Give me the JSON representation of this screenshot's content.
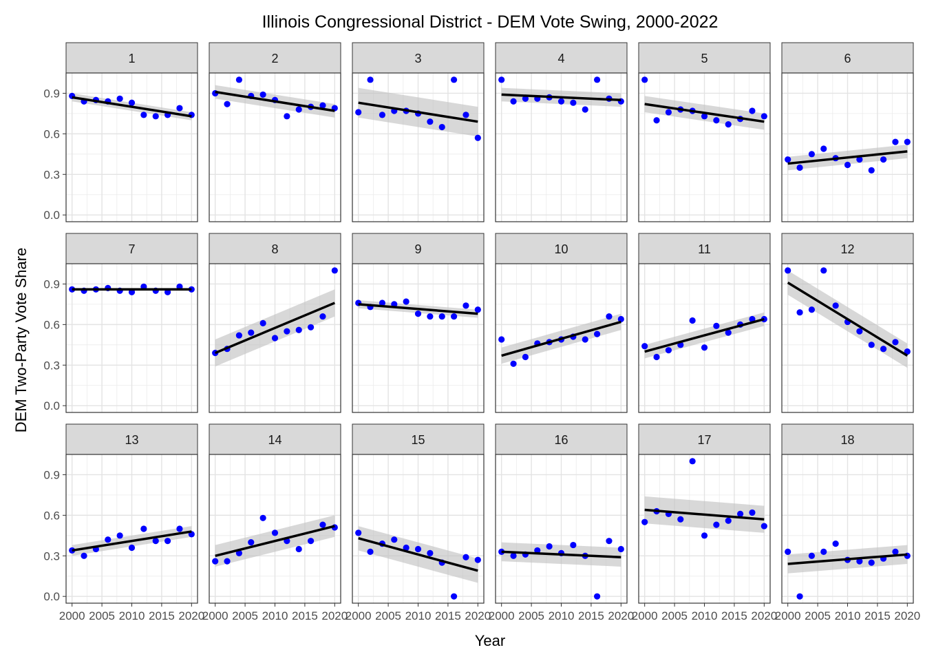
{
  "chart_data": {
    "type": "scatter",
    "title": "Illinois Congressional District - DEM Vote Swing, 2000-2022",
    "xlabel": "Year",
    "ylabel": "DEM Two-Party Vote Share",
    "x_ticks": [
      2000,
      2005,
      2010,
      2015,
      2020
    ],
    "x_tick_labels": [
      "2000",
      "2005",
      "2010",
      "2015",
      "2020"
    ],
    "y_ticks": [
      0.0,
      0.3,
      0.6,
      0.9
    ],
    "y_tick_labels": [
      "0.0",
      "0.3",
      "0.6",
      "0.9"
    ],
    "xlim": [
      1999.0,
      2021.0
    ],
    "ylim": [
      -0.05,
      1.05
    ],
    "grid": true,
    "point_color": "#0000ff",
    "trend_color": "#000000",
    "band_color": "#bebebe",
    "strip_color": "#d9d9d9",
    "x": [
      2000,
      2002,
      2004,
      2006,
      2008,
      2010,
      2012,
      2014,
      2016,
      2018,
      2020
    ],
    "panels": [
      {
        "label": "1",
        "values": [
          0.88,
          0.84,
          0.85,
          0.84,
          0.86,
          0.83,
          0.74,
          0.73,
          0.74,
          0.79,
          0.74
        ],
        "trend": [
          0.87,
          0.73
        ],
        "band": [
          0.03,
          0.03
        ]
      },
      {
        "label": "2",
        "values": [
          0.9,
          0.82,
          1.0,
          0.88,
          0.89,
          0.85,
          0.73,
          0.78,
          0.8,
          0.81,
          0.79
        ],
        "trend": [
          0.91,
          0.77
        ],
        "band": [
          0.05,
          0.05
        ]
      },
      {
        "label": "3",
        "values": [
          0.76,
          1.0,
          0.74,
          0.77,
          0.77,
          0.75,
          0.69,
          0.65,
          1.0,
          0.74,
          0.57
        ],
        "trend": [
          0.83,
          0.69
        ],
        "band": [
          0.11,
          0.11
        ]
      },
      {
        "label": "4",
        "values": [
          1.0,
          0.84,
          0.86,
          0.86,
          0.87,
          0.84,
          0.83,
          0.78,
          1.0,
          0.86,
          0.84
        ],
        "trend": [
          0.89,
          0.85
        ],
        "band": [
          0.05,
          0.05
        ]
      },
      {
        "label": "5",
        "values": [
          1.0,
          0.7,
          0.76,
          0.78,
          0.77,
          0.73,
          0.7,
          0.67,
          0.71,
          0.77,
          0.73
        ],
        "trend": [
          0.82,
          0.69
        ],
        "band": [
          0.06,
          0.06
        ]
      },
      {
        "label": "6",
        "values": [
          0.41,
          0.35,
          0.45,
          0.49,
          0.42,
          0.37,
          0.41,
          0.33,
          0.41,
          0.54,
          0.54
        ],
        "trend": [
          0.38,
          0.47
        ],
        "band": [
          0.05,
          0.05
        ]
      },
      {
        "label": "7",
        "values": [
          0.86,
          0.85,
          0.86,
          0.87,
          0.85,
          0.84,
          0.88,
          0.85,
          0.84,
          0.88,
          0.86
        ],
        "trend": [
          0.86,
          0.86
        ],
        "band": [
          0.01,
          0.01
        ]
      },
      {
        "label": "8",
        "values": [
          0.39,
          0.42,
          0.52,
          0.54,
          0.61,
          0.5,
          0.55,
          0.56,
          0.58,
          0.66,
          1.0
        ],
        "trend": [
          0.39,
          0.76
        ],
        "band": [
          0.1,
          0.1
        ]
      },
      {
        "label": "9",
        "values": [
          0.76,
          0.73,
          0.76,
          0.75,
          0.77,
          0.68,
          0.66,
          0.66,
          0.66,
          0.74,
          0.71
        ],
        "trend": [
          0.75,
          0.68
        ],
        "band": [
          0.03,
          0.03
        ]
      },
      {
        "label": "10",
        "values": [
          0.49,
          0.31,
          0.36,
          0.46,
          0.47,
          0.49,
          0.51,
          0.49,
          0.53,
          0.66,
          0.64
        ],
        "trend": [
          0.37,
          0.62
        ],
        "band": [
          0.06,
          0.06
        ]
      },
      {
        "label": "11",
        "values": [
          0.44,
          0.36,
          0.41,
          0.45,
          0.63,
          0.43,
          0.59,
          0.54,
          0.6,
          0.64,
          0.64
        ],
        "trend": [
          0.4,
          0.64
        ],
        "band": [
          0.05,
          0.05
        ]
      },
      {
        "label": "12",
        "values": [
          1.0,
          0.69,
          0.71,
          1.0,
          0.74,
          0.62,
          0.55,
          0.45,
          0.42,
          0.47,
          0.4
        ],
        "trend": [
          0.91,
          0.37
        ],
        "band": [
          0.09,
          0.09
        ]
      },
      {
        "label": "13",
        "values": [
          0.34,
          0.3,
          0.35,
          0.42,
          0.45,
          0.36,
          0.5,
          0.41,
          0.41,
          0.5,
          0.46
        ],
        "trend": [
          0.34,
          0.48
        ],
        "band": [
          0.04,
          0.04
        ]
      },
      {
        "label": "14",
        "values": [
          0.26,
          0.26,
          0.32,
          0.4,
          0.58,
          0.47,
          0.41,
          0.35,
          0.41,
          0.53,
          0.51
        ],
        "trend": [
          0.3,
          0.52
        ],
        "band": [
          0.08,
          0.08
        ]
      },
      {
        "label": "15",
        "values": [
          0.47,
          0.33,
          0.39,
          0.42,
          0.36,
          0.35,
          0.32,
          0.25,
          0.0,
          0.29,
          0.27
        ],
        "trend": [
          0.43,
          0.19
        ],
        "band": [
          0.09,
          0.09
        ]
      },
      {
        "label": "16",
        "values": [
          0.33,
          0.3,
          0.31,
          0.34,
          0.37,
          0.32,
          0.38,
          0.3,
          0.0,
          0.41,
          0.35
        ],
        "trend": [
          0.33,
          0.29
        ],
        "band": [
          0.07,
          0.07
        ]
      },
      {
        "label": "17",
        "values": [
          0.55,
          0.63,
          0.61,
          0.57,
          1.0,
          0.45,
          0.53,
          0.56,
          0.61,
          0.62,
          0.52
        ],
        "trend": [
          0.64,
          0.57
        ],
        "band": [
          0.1,
          0.1
        ]
      },
      {
        "label": "18",
        "values": [
          0.33,
          0.0,
          0.3,
          0.33,
          0.39,
          0.27,
          0.26,
          0.25,
          0.28,
          0.33,
          0.3
        ],
        "trend": [
          0.24,
          0.31
        ],
        "band": [
          0.07,
          0.07
        ]
      }
    ]
  }
}
